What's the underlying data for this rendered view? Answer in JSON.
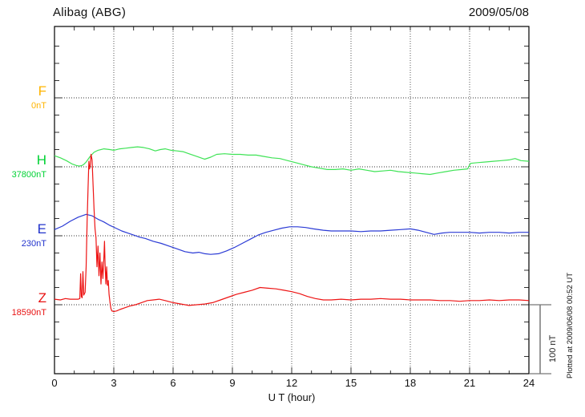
{
  "header": {
    "station": "Alibag (ABG)",
    "date": "2009/05/08"
  },
  "footer_note": "Plotted at 2009/06/08 00:52 UT",
  "scale_bar": {
    "label": "100 nT",
    "nT": 100
  },
  "x_axis": {
    "label": "U T (hour)",
    "min_hour": 0,
    "max_hour": 24,
    "major_tick_every_hours": 3,
    "minor_tick_every_hours": 1,
    "tick_labels": [
      "0",
      "3",
      "6",
      "9",
      "12",
      "15",
      "18",
      "21",
      "24"
    ]
  },
  "colors": {
    "F": "#FFB400",
    "H": "#00D234",
    "H_curve": "#3FE356",
    "E": "#2233CC",
    "E_curve": "#2B3BD5",
    "Z": "#E81212",
    "Z_curve": "#ED1414",
    "axis": "#222222",
    "grid": "#555555",
    "background": "#ffffff"
  },
  "chart_data": {
    "type": "line",
    "title": "Alibag (ABG)",
    "subtitle": "2009/05/08",
    "xlabel": "U T (hour)",
    "ylabel": "offset from component base value (nT)",
    "x_range_hours": [
      0,
      24
    ],
    "grid": "dotted, vertical every 3 h, horizontal dotted line at each component base",
    "nT_per_minor_division": 25,
    "scale_bar_nT": 100,
    "legend_position": "left margin component labels",
    "series": [
      {
        "component": "F",
        "base_label": "0nT",
        "base_nT": 0,
        "color": "#FFB400",
        "note": "no data plotted for F on this day",
        "points": []
      },
      {
        "component": "H",
        "base_label": "37800nT",
        "base_nT": 37800,
        "color": "#3FE356",
        "points": [
          [
            0,
            16
          ],
          [
            0.3,
            13
          ],
          [
            0.6,
            9
          ],
          [
            0.9,
            4
          ],
          [
            1.1,
            2
          ],
          [
            1.25,
            1
          ],
          [
            1.4,
            2
          ],
          [
            1.5,
            4
          ],
          [
            1.6,
            7
          ],
          [
            1.8,
            15
          ],
          [
            2.0,
            21
          ],
          [
            2.2,
            24
          ],
          [
            2.5,
            26
          ],
          [
            2.8,
            25
          ],
          [
            3.0,
            24
          ],
          [
            3.3,
            26
          ],
          [
            3.6,
            27
          ],
          [
            3.9,
            28
          ],
          [
            4.2,
            29
          ],
          [
            4.5,
            28
          ],
          [
            4.8,
            26
          ],
          [
            5.1,
            23
          ],
          [
            5.35,
            25
          ],
          [
            5.6,
            26
          ],
          [
            5.9,
            24
          ],
          [
            6.2,
            23
          ],
          [
            6.5,
            22
          ],
          [
            6.8,
            19
          ],
          [
            7.2,
            15
          ],
          [
            7.6,
            11
          ],
          [
            7.9,
            14
          ],
          [
            8.2,
            18
          ],
          [
            8.6,
            19
          ],
          [
            9.0,
            18
          ],
          [
            9.4,
            18
          ],
          [
            9.8,
            17
          ],
          [
            10.2,
            17
          ],
          [
            10.6,
            15
          ],
          [
            11.0,
            13
          ],
          [
            11.4,
            12
          ],
          [
            11.8,
            9
          ],
          [
            12.2,
            6
          ],
          [
            12.6,
            3
          ],
          [
            13.0,
            0
          ],
          [
            13.4,
            -2
          ],
          [
            13.8,
            -4
          ],
          [
            14.2,
            -4
          ],
          [
            14.6,
            -3
          ],
          [
            15.0,
            -5
          ],
          [
            15.4,
            -3
          ],
          [
            15.8,
            -5
          ],
          [
            16.2,
            -7
          ],
          [
            16.6,
            -6
          ],
          [
            17.0,
            -5
          ],
          [
            17.4,
            -7
          ],
          [
            17.8,
            -8
          ],
          [
            18.2,
            -9
          ],
          [
            18.6,
            -10
          ],
          [
            19.0,
            -11
          ],
          [
            19.4,
            -9
          ],
          [
            19.8,
            -7
          ],
          [
            20.2,
            -5
          ],
          [
            20.6,
            -4
          ],
          [
            20.9,
            -3
          ],
          [
            21.05,
            5
          ],
          [
            21.4,
            6
          ],
          [
            21.8,
            7
          ],
          [
            22.2,
            8
          ],
          [
            22.6,
            9
          ],
          [
            23.0,
            10
          ],
          [
            23.3,
            12
          ],
          [
            23.6,
            9
          ],
          [
            24.0,
            8
          ]
        ]
      },
      {
        "component": "E",
        "base_label": "230nT",
        "base_nT": 230,
        "color": "#2B3BD5",
        "points": [
          [
            0,
            9
          ],
          [
            0.4,
            14
          ],
          [
            0.8,
            21
          ],
          [
            1.2,
            27
          ],
          [
            1.6,
            31
          ],
          [
            1.9,
            29
          ],
          [
            2.2,
            24
          ],
          [
            2.5,
            20
          ],
          [
            2.8,
            15
          ],
          [
            3.1,
            11
          ],
          [
            3.4,
            7
          ],
          [
            3.7,
            4
          ],
          [
            4.0,
            1
          ],
          [
            4.3,
            -2
          ],
          [
            4.6,
            -4
          ],
          [
            5.0,
            -8
          ],
          [
            5.4,
            -11
          ],
          [
            5.8,
            -15
          ],
          [
            6.2,
            -19
          ],
          [
            6.6,
            -23
          ],
          [
            7.0,
            -25
          ],
          [
            7.3,
            -24
          ],
          [
            7.6,
            -26
          ],
          [
            7.9,
            -27
          ],
          [
            8.3,
            -26
          ],
          [
            8.7,
            -22
          ],
          [
            9.1,
            -17
          ],
          [
            9.5,
            -11
          ],
          [
            9.9,
            -5
          ],
          [
            10.3,
            1
          ],
          [
            10.7,
            5
          ],
          [
            11.1,
            8
          ],
          [
            11.5,
            11
          ],
          [
            11.9,
            13
          ],
          [
            12.3,
            13
          ],
          [
            12.7,
            12
          ],
          [
            13.1,
            10
          ],
          [
            13.6,
            8
          ],
          [
            14.0,
            7
          ],
          [
            14.5,
            7
          ],
          [
            15.0,
            7
          ],
          [
            15.5,
            6
          ],
          [
            16.0,
            7
          ],
          [
            16.5,
            7
          ],
          [
            17.0,
            8
          ],
          [
            17.5,
            9
          ],
          [
            18.0,
            10
          ],
          [
            18.4,
            8
          ],
          [
            18.8,
            5
          ],
          [
            19.2,
            2
          ],
          [
            19.6,
            4
          ],
          [
            20.0,
            5
          ],
          [
            20.5,
            5
          ],
          [
            21.0,
            5
          ],
          [
            21.5,
            4
          ],
          [
            22.0,
            5
          ],
          [
            22.5,
            5
          ],
          [
            23.0,
            4
          ],
          [
            23.5,
            5
          ],
          [
            24.0,
            5
          ]
        ]
      },
      {
        "component": "Z",
        "base_label": "18590nT",
        "base_nT": 18590,
        "color": "#ED1414",
        "points": [
          [
            0,
            8
          ],
          [
            0.3,
            7
          ],
          [
            0.55,
            9
          ],
          [
            0.8,
            8
          ],
          [
            1.0,
            8
          ],
          [
            1.2,
            8
          ],
          [
            1.28,
            9
          ],
          [
            1.32,
            45
          ],
          [
            1.36,
            12
          ],
          [
            1.4,
            10
          ],
          [
            1.44,
            48
          ],
          [
            1.48,
            14
          ],
          [
            1.55,
            18
          ],
          [
            1.6,
            55
          ],
          [
            1.65,
            120
          ],
          [
            1.7,
            170
          ],
          [
            1.74,
            208
          ],
          [
            1.77,
            197
          ],
          [
            1.81,
            202
          ],
          [
            1.85,
            218
          ],
          [
            1.9,
            210
          ],
          [
            1.95,
            175
          ],
          [
            2.0,
            140
          ],
          [
            2.05,
            110
          ],
          [
            2.1,
            97
          ],
          [
            2.15,
            55
          ],
          [
            2.2,
            85
          ],
          [
            2.25,
            42
          ],
          [
            2.3,
            75
          ],
          [
            2.35,
            30
          ],
          [
            2.4,
            62
          ],
          [
            2.45,
            38
          ],
          [
            2.5,
            70
          ],
          [
            2.53,
            92
          ],
          [
            2.56,
            60
          ],
          [
            2.6,
            30
          ],
          [
            2.64,
            55
          ],
          [
            2.68,
            28
          ],
          [
            2.72,
            35
          ],
          [
            2.76,
            15
          ],
          [
            2.8,
            5
          ],
          [
            2.85,
            -5
          ],
          [
            2.9,
            -9
          ],
          [
            3.0,
            -10
          ],
          [
            3.15,
            -9
          ],
          [
            3.3,
            -7
          ],
          [
            3.5,
            -5
          ],
          [
            3.8,
            -2
          ],
          [
            4.1,
            0
          ],
          [
            4.4,
            3
          ],
          [
            4.7,
            6
          ],
          [
            5.0,
            7
          ],
          [
            5.3,
            8
          ],
          [
            5.6,
            6
          ],
          [
            6.0,
            3
          ],
          [
            6.4,
            1
          ],
          [
            6.8,
            -1
          ],
          [
            7.2,
            0
          ],
          [
            7.6,
            1
          ],
          [
            8.0,
            3
          ],
          [
            8.4,
            7
          ],
          [
            8.8,
            11
          ],
          [
            9.2,
            15
          ],
          [
            9.6,
            18
          ],
          [
            10.0,
            21
          ],
          [
            10.4,
            25
          ],
          [
            10.8,
            24
          ],
          [
            11.2,
            23
          ],
          [
            11.6,
            21
          ],
          [
            12.0,
            19
          ],
          [
            12.4,
            16
          ],
          [
            12.8,
            12
          ],
          [
            13.2,
            9
          ],
          [
            13.6,
            7
          ],
          [
            14.0,
            7
          ],
          [
            14.5,
            8
          ],
          [
            15.0,
            7
          ],
          [
            15.5,
            8
          ],
          [
            16.0,
            8
          ],
          [
            16.5,
            9
          ],
          [
            17.0,
            8
          ],
          [
            17.5,
            8
          ],
          [
            18.0,
            7
          ],
          [
            18.5,
            7
          ],
          [
            19.0,
            7
          ],
          [
            19.5,
            6
          ],
          [
            20.0,
            6
          ],
          [
            20.5,
            5
          ],
          [
            21.0,
            6
          ],
          [
            21.5,
            6
          ],
          [
            22.0,
            7
          ],
          [
            22.5,
            6
          ],
          [
            23.0,
            7
          ],
          [
            23.5,
            7
          ],
          [
            24.0,
            6
          ]
        ]
      }
    ]
  }
}
